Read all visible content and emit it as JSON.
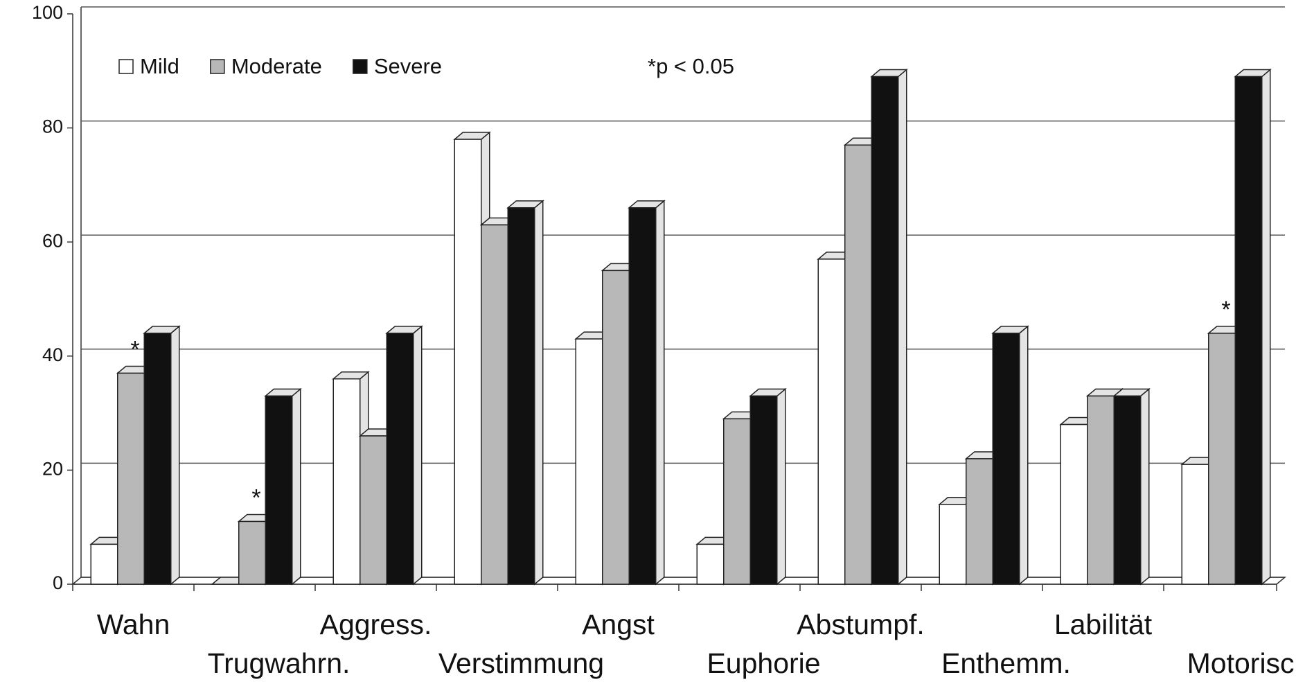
{
  "chart_data": {
    "type": "bar3d",
    "categories": [
      "Wahn",
      "Trugwahrn.",
      "Aggress.",
      "Verstimmung",
      "Angst",
      "Euphorie",
      "Abstumpf.",
      "Enthemm.",
      "Labilität",
      "Motorisch"
    ],
    "series": [
      {
        "name": "Mild",
        "color": "#ffffff",
        "values": [
          7,
          0,
          36,
          78,
          43,
          7,
          57,
          14,
          28,
          21
        ]
      },
      {
        "name": "Moderate",
        "color": "#b8b8b8",
        "values": [
          37,
          11,
          26,
          63,
          55,
          29,
          77,
          22,
          33,
          44
        ]
      },
      {
        "name": "Severe",
        "color": "#111111",
        "values": [
          44,
          33,
          44,
          66,
          66,
          33,
          89,
          44,
          33,
          89
        ]
      }
    ],
    "annotations": [
      {
        "text": "*",
        "category": 0,
        "series": 1
      },
      {
        "text": "*",
        "category": 1,
        "series": 1
      },
      {
        "text": "*",
        "category": 9,
        "series": 1
      }
    ],
    "note": "*p < 0.05",
    "ylim": [
      0,
      100
    ],
    "yticks": [
      0,
      20,
      40,
      60,
      80,
      100
    ],
    "grid": true
  }
}
